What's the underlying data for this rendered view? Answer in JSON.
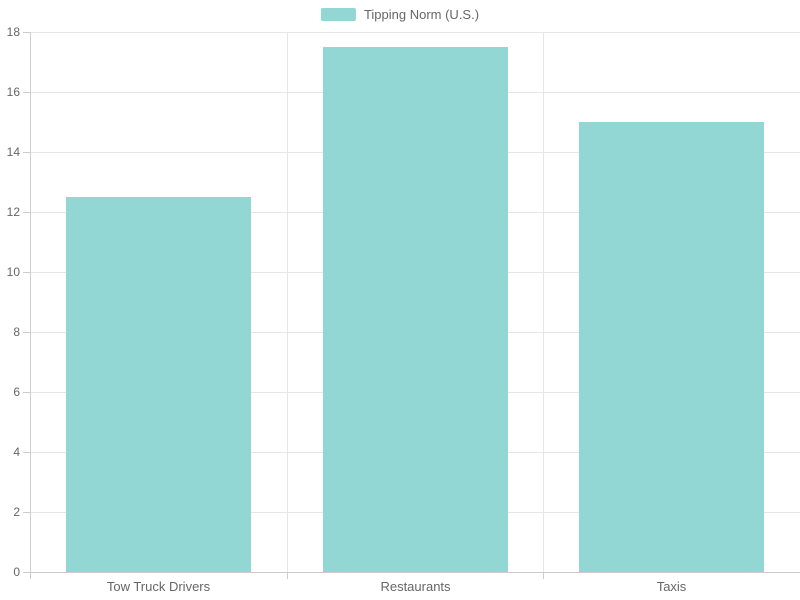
{
  "chart_data": {
    "type": "bar",
    "title": "",
    "xlabel": "",
    "ylabel": "",
    "categories": [
      "Tow Truck Drivers",
      "Restaurants",
      "Taxis"
    ],
    "series": [
      {
        "name": "Tipping Norm (U.S.)",
        "values": [
          12.5,
          17.5,
          15
        ]
      }
    ],
    "ylim": [
      0,
      18
    ],
    "ytick_step": 2,
    "yticks": [
      0,
      2,
      4,
      6,
      8,
      10,
      12,
      14,
      16,
      18
    ],
    "grid": "horizontal and vertical category-boundary gridlines",
    "legend_position": "top-center"
  },
  "legend": {
    "label": "Tipping Norm (U.S.)"
  },
  "colors": {
    "bar": "#92d7d3",
    "grid": "#e6e6e6",
    "axis": "#cccccc",
    "label": "#666666",
    "background": "#ffffff"
  }
}
